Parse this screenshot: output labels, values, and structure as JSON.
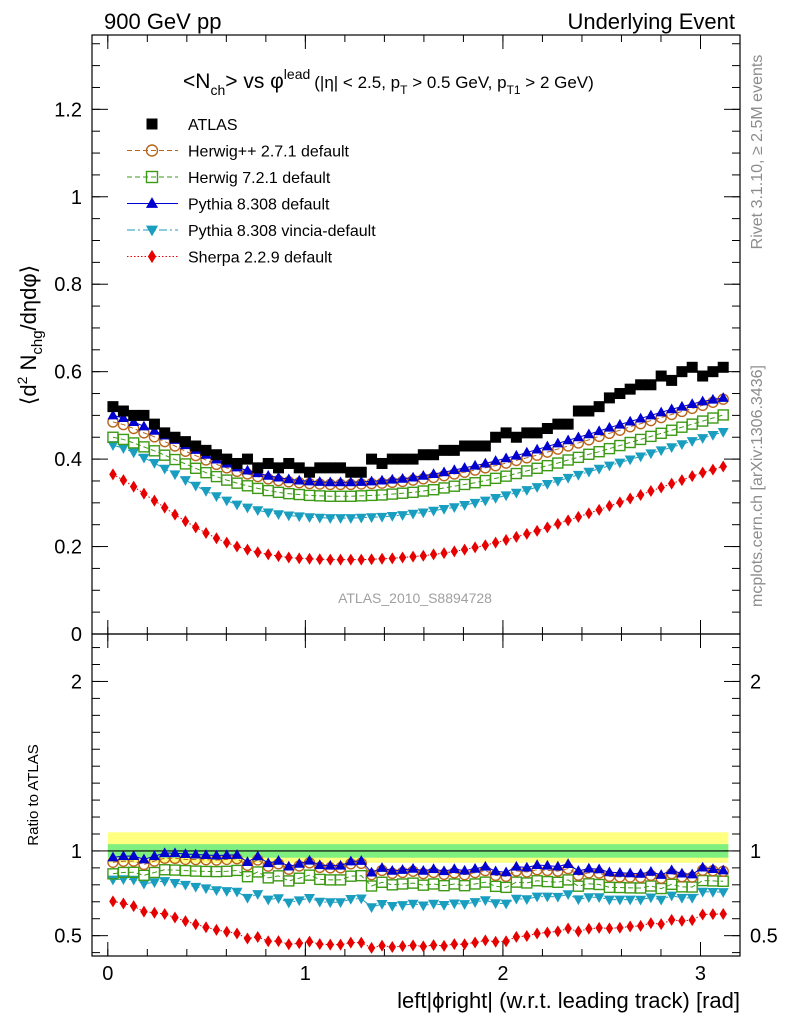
{
  "header": {
    "left": "900 GeV pp",
    "right": "Underlying Event"
  },
  "side_labels": {
    "version": "Rivet 3.1.10, ≥ 2.5M events",
    "source": "mcplots.cern.ch [arXiv:1306.3436]"
  },
  "watermark": "ATLAS_2010_S8894728",
  "colors": {
    "atlas": "#000000",
    "herwigpp": "#b8661a",
    "herwig7": "#3c9a14",
    "pythia": "#0000d0",
    "vincia": "#1a9ec0",
    "sherpa": "#e60000",
    "band_inner": "#7ff07f",
    "band_outer": "#ffff80"
  },
  "chart_data": [
    {
      "type": "scatter",
      "title": "<N_ch> vs φ^lead (|η| < 2.5, p_T > 0.5 GeV, p_T1 > 2 GeV)",
      "title_parts": {
        "main": "<N",
        "main_sub": "ch",
        "vs": "> vs φ",
        "vs_sup": "lead",
        "cuts_a": "(|η| < 2.5, p",
        "cuts_a_sub": "T",
        "cuts_b": " > 0.5 GeV, p",
        "cuts_b_sub": "T1",
        "cuts_c": " > 2 GeV)"
      },
      "ylabel": "⟨d² N_chg/dηdφ⟩",
      "ylabel_parts": {
        "a": "⟨d",
        "a_sup": "2",
        "b": " N",
        "b_sub": "chg",
        "c": "/dηdφ⟩"
      },
      "xlim": [
        -0.08,
        3.2
      ],
      "ylim": [
        0,
        1.37
      ],
      "yticks": [
        0,
        0.2,
        0.4,
        0.6,
        0.8,
        1,
        1.2
      ],
      "ytick_labels": [
        "0",
        "0.2",
        "0.4",
        "0.6",
        "0.8",
        "1",
        "1.2"
      ],
      "legend_position": "top-left",
      "x": [
        0.026,
        0.079,
        0.131,
        0.183,
        0.236,
        0.288,
        0.34,
        0.393,
        0.445,
        0.497,
        0.55,
        0.602,
        0.654,
        0.707,
        0.759,
        0.812,
        0.864,
        0.916,
        0.969,
        1.021,
        1.073,
        1.126,
        1.178,
        1.23,
        1.283,
        1.335,
        1.388,
        1.44,
        1.492,
        1.545,
        1.597,
        1.649,
        1.702,
        1.754,
        1.806,
        1.859,
        1.911,
        1.963,
        2.016,
        2.068,
        2.121,
        2.173,
        2.225,
        2.278,
        2.33,
        2.382,
        2.435,
        2.487,
        2.539,
        2.592,
        2.644,
        2.697,
        2.749,
        2.801,
        2.854,
        2.906,
        2.958,
        3.011,
        3.063,
        3.115
      ],
      "series": [
        {
          "name": "ATLAS",
          "color": "#000000",
          "marker": "square",
          "values": [
            0.52,
            0.51,
            0.5,
            0.5,
            0.48,
            0.46,
            0.45,
            0.44,
            0.43,
            0.42,
            0.41,
            0.4,
            0.39,
            0.4,
            0.38,
            0.39,
            0.38,
            0.39,
            0.38,
            0.37,
            0.38,
            0.38,
            0.38,
            0.37,
            0.37,
            0.4,
            0.39,
            0.4,
            0.4,
            0.4,
            0.41,
            0.41,
            0.42,
            0.42,
            0.43,
            0.43,
            0.43,
            0.45,
            0.46,
            0.45,
            0.46,
            0.46,
            0.47,
            0.48,
            0.48,
            0.51,
            0.51,
            0.52,
            0.54,
            0.55,
            0.56,
            0.57,
            0.57,
            0.59,
            0.58,
            0.6,
            0.61,
            0.59,
            0.6,
            0.61
          ]
        },
        {
          "name": "Herwig++ 2.7.1 default",
          "color": "#b8661a",
          "marker": "circle-open",
          "values": [
            0.485,
            0.479,
            0.47,
            0.46,
            0.451,
            0.44,
            0.43,
            0.418,
            0.408,
            0.398,
            0.388,
            0.38,
            0.372,
            0.366,
            0.36,
            0.355,
            0.351,
            0.348,
            0.346,
            0.344,
            0.343,
            0.342,
            0.342,
            0.342,
            0.343,
            0.344,
            0.345,
            0.347,
            0.349,
            0.352,
            0.355,
            0.358,
            0.362,
            0.366,
            0.37,
            0.375,
            0.38,
            0.385,
            0.391,
            0.397,
            0.403,
            0.409,
            0.416,
            0.423,
            0.43,
            0.437,
            0.444,
            0.452,
            0.459,
            0.466,
            0.474,
            0.481,
            0.488,
            0.495,
            0.502,
            0.509,
            0.516,
            0.523,
            0.53,
            0.537
          ]
        },
        {
          "name": "Herwig 7.2.1 default",
          "color": "#3c9a14",
          "marker": "square-open",
          "values": [
            0.45,
            0.445,
            0.437,
            0.428,
            0.419,
            0.409,
            0.399,
            0.389,
            0.379,
            0.369,
            0.36,
            0.352,
            0.345,
            0.339,
            0.333,
            0.328,
            0.324,
            0.321,
            0.319,
            0.317,
            0.316,
            0.315,
            0.315,
            0.315,
            0.316,
            0.317,
            0.318,
            0.32,
            0.322,
            0.324,
            0.327,
            0.33,
            0.334,
            0.338,
            0.342,
            0.346,
            0.351,
            0.356,
            0.361,
            0.367,
            0.373,
            0.379,
            0.385,
            0.391,
            0.398,
            0.404,
            0.411,
            0.417,
            0.424,
            0.431,
            0.438,
            0.445,
            0.452,
            0.459,
            0.466,
            0.473,
            0.48,
            0.487,
            0.494,
            0.501
          ]
        },
        {
          "name": "Pythia 8.308 default",
          "color": "#0000d0",
          "marker": "triangle-up",
          "values": [
            0.5,
            0.494,
            0.485,
            0.475,
            0.465,
            0.454,
            0.444,
            0.432,
            0.421,
            0.41,
            0.399,
            0.39,
            0.381,
            0.374,
            0.368,
            0.362,
            0.358,
            0.354,
            0.351,
            0.349,
            0.348,
            0.347,
            0.347,
            0.347,
            0.348,
            0.349,
            0.351,
            0.353,
            0.355,
            0.358,
            0.362,
            0.366,
            0.37,
            0.375,
            0.38,
            0.385,
            0.39,
            0.396,
            0.402,
            0.408,
            0.415,
            0.422,
            0.429,
            0.436,
            0.443,
            0.45,
            0.457,
            0.464,
            0.472,
            0.479,
            0.486,
            0.493,
            0.5,
            0.507,
            0.514,
            0.52,
            0.526,
            0.532,
            0.536,
            0.54
          ]
        },
        {
          "name": "Pythia 8.308 vincia-default",
          "color": "#1a9ec0",
          "marker": "triangle-down",
          "values": [
            0.432,
            0.425,
            0.415,
            0.403,
            0.391,
            0.378,
            0.365,
            0.352,
            0.339,
            0.327,
            0.315,
            0.305,
            0.296,
            0.289,
            0.283,
            0.278,
            0.274,
            0.271,
            0.269,
            0.267,
            0.266,
            0.265,
            0.265,
            0.265,
            0.266,
            0.267,
            0.268,
            0.27,
            0.272,
            0.275,
            0.278,
            0.282,
            0.286,
            0.29,
            0.295,
            0.3,
            0.305,
            0.311,
            0.317,
            0.323,
            0.329,
            0.336,
            0.343,
            0.35,
            0.357,
            0.364,
            0.371,
            0.378,
            0.385,
            0.392,
            0.399,
            0.406,
            0.413,
            0.42,
            0.427,
            0.434,
            0.441,
            0.448,
            0.455,
            0.462
          ]
        },
        {
          "name": "Sherpa 2.2.9 default",
          "color": "#e60000",
          "marker": "diamond",
          "values": [
            0.365,
            0.352,
            0.337,
            0.321,
            0.305,
            0.289,
            0.273,
            0.258,
            0.244,
            0.231,
            0.219,
            0.209,
            0.2,
            0.193,
            0.187,
            0.182,
            0.178,
            0.175,
            0.173,
            0.172,
            0.171,
            0.17,
            0.17,
            0.17,
            0.17,
            0.171,
            0.172,
            0.173,
            0.175,
            0.177,
            0.179,
            0.182,
            0.185,
            0.189,
            0.193,
            0.198,
            0.203,
            0.209,
            0.215,
            0.222,
            0.229,
            0.236,
            0.244,
            0.252,
            0.26,
            0.268,
            0.276,
            0.284,
            0.293,
            0.301,
            0.31,
            0.318,
            0.327,
            0.335,
            0.344,
            0.352,
            0.361,
            0.369,
            0.376,
            0.383
          ]
        }
      ]
    },
    {
      "type": "scatter",
      "ylabel": "Ratio to ATLAS",
      "xlabel": "left|ϕright| (w.r.t. leading track) [rad]",
      "xlim": [
        -0.08,
        3.2
      ],
      "ylim": [
        0.38,
        2.28
      ],
      "xticks": [
        0,
        1,
        2,
        3
      ],
      "xtick_labels": [
        "0",
        "1",
        "2",
        "3"
      ],
      "yticks": [
        0.5,
        1,
        2
      ],
      "ytick_labels": [
        "0.5",
        "1",
        "2"
      ],
      "reference_line": 1,
      "band_inner": [
        0.96,
        1.04
      ],
      "band_outer": [
        0.93,
        1.11
      ],
      "series": [
        {
          "name": "Herwig++ 2.7.1 default",
          "color": "#b8661a",
          "marker": "circle-open",
          "values": [
            0.933,
            0.939,
            0.94,
            0.92,
            0.94,
            0.957,
            0.956,
            0.95,
            0.949,
            0.948,
            0.946,
            0.95,
            0.954,
            0.915,
            0.947,
            0.91,
            0.924,
            0.892,
            0.911,
            0.93,
            0.903,
            0.9,
            0.9,
            0.924,
            0.927,
            0.86,
            0.885,
            0.868,
            0.873,
            0.88,
            0.866,
            0.873,
            0.862,
            0.871,
            0.86,
            0.872,
            0.884,
            0.856,
            0.85,
            0.882,
            0.876,
            0.889,
            0.885,
            0.881,
            0.896,
            0.857,
            0.871,
            0.869,
            0.85,
            0.847,
            0.846,
            0.844,
            0.856,
            0.839,
            0.866,
            0.848,
            0.846,
            0.886,
            0.883,
            0.88
          ]
        },
        {
          "name": "Herwig 7.2.1 default",
          "color": "#3c9a14",
          "marker": "square-open",
          "values": [
            0.865,
            0.873,
            0.874,
            0.856,
            0.873,
            0.889,
            0.887,
            0.884,
            0.881,
            0.879,
            0.878,
            0.88,
            0.885,
            0.848,
            0.876,
            0.841,
            0.853,
            0.823,
            0.839,
            0.857,
            0.832,
            0.829,
            0.829,
            0.851,
            0.854,
            0.793,
            0.815,
            0.8,
            0.805,
            0.81,
            0.798,
            0.805,
            0.795,
            0.805,
            0.795,
            0.805,
            0.816,
            0.791,
            0.785,
            0.816,
            0.811,
            0.824,
            0.819,
            0.815,
            0.829,
            0.792,
            0.806,
            0.802,
            0.785,
            0.784,
            0.782,
            0.781,
            0.793,
            0.778,
            0.803,
            0.788,
            0.787,
            0.825,
            0.823,
            0.821
          ]
        },
        {
          "name": "Pythia 8.308 default",
          "color": "#0000d0",
          "marker": "triangle-up",
          "values": [
            0.962,
            0.969,
            0.97,
            0.95,
            0.969,
            0.987,
            0.987,
            0.982,
            0.979,
            0.976,
            0.973,
            0.975,
            0.977,
            0.935,
            0.968,
            0.928,
            0.942,
            0.908,
            0.924,
            0.943,
            0.916,
            0.913,
            0.913,
            0.938,
            0.941,
            0.873,
            0.9,
            0.883,
            0.888,
            0.895,
            0.883,
            0.893,
            0.881,
            0.893,
            0.884,
            0.895,
            0.907,
            0.88,
            0.874,
            0.907,
            0.902,
            0.917,
            0.913,
            0.908,
            0.923,
            0.882,
            0.896,
            0.892,
            0.874,
            0.871,
            0.868,
            0.865,
            0.877,
            0.859,
            0.886,
            0.867,
            0.862,
            0.902,
            0.893,
            0.885
          ]
        },
        {
          "name": "Pythia 8.308 vincia-default",
          "color": "#1a9ec0",
          "marker": "triangle-down",
          "values": [
            0.831,
            0.833,
            0.83,
            0.806,
            0.815,
            0.822,
            0.811,
            0.8,
            0.788,
            0.779,
            0.768,
            0.763,
            0.759,
            0.723,
            0.745,
            0.713,
            0.721,
            0.695,
            0.708,
            0.722,
            0.7,
            0.697,
            0.697,
            0.716,
            0.719,
            0.668,
            0.687,
            0.675,
            0.68,
            0.688,
            0.678,
            0.688,
            0.681,
            0.69,
            0.686,
            0.698,
            0.709,
            0.691,
            0.689,
            0.718,
            0.715,
            0.73,
            0.73,
            0.729,
            0.744,
            0.714,
            0.727,
            0.727,
            0.713,
            0.713,
            0.713,
            0.712,
            0.725,
            0.712,
            0.736,
            0.723,
            0.723,
            0.759,
            0.758,
            0.757
          ]
        },
        {
          "name": "Sherpa 2.2.9 default",
          "color": "#e60000",
          "marker": "diamond",
          "values": [
            0.702,
            0.69,
            0.674,
            0.642,
            0.635,
            0.628,
            0.607,
            0.586,
            0.567,
            0.55,
            0.534,
            0.523,
            0.513,
            0.483,
            0.492,
            0.467,
            0.468,
            0.449,
            0.455,
            0.465,
            0.45,
            0.447,
            0.447,
            0.459,
            0.459,
            0.428,
            0.441,
            0.433,
            0.438,
            0.443,
            0.437,
            0.444,
            0.44,
            0.45,
            0.449,
            0.46,
            0.472,
            0.464,
            0.467,
            0.493,
            0.498,
            0.513,
            0.519,
            0.525,
            0.542,
            0.525,
            0.541,
            0.546,
            0.543,
            0.547,
            0.554,
            0.558,
            0.574,
            0.568,
            0.593,
            0.587,
            0.592,
            0.625,
            0.627,
            0.628
          ]
        }
      ]
    }
  ]
}
